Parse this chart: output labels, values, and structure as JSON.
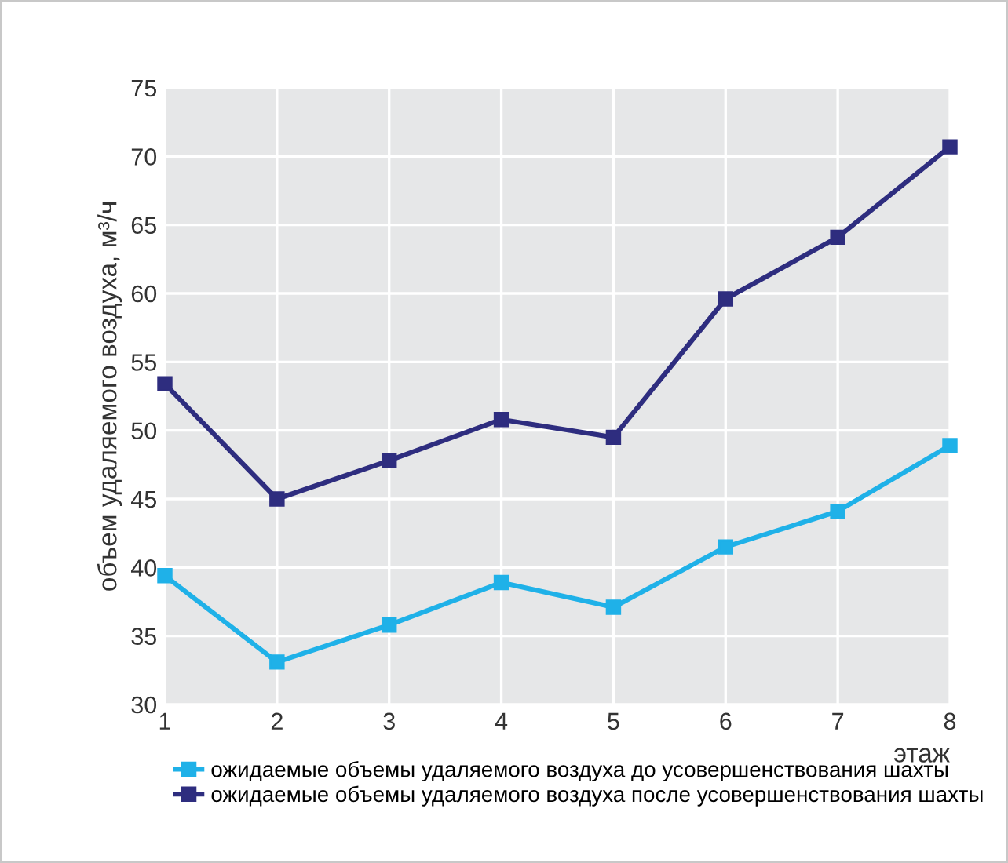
{
  "chart_data": {
    "type": "line",
    "xlabel": "этаж",
    "ylabel": "объем удаляемого воздуха, м³/ч",
    "x": [
      1,
      2,
      3,
      4,
      5,
      6,
      7,
      8
    ],
    "series": [
      {
        "name": "ожидаемые объемы удаляемого воздуха до усовершенствования шахты",
        "color": "#1fb1e8",
        "values": [
          39.4,
          33.1,
          35.8,
          38.9,
          37.1,
          41.5,
          44.1,
          48.9
        ]
      },
      {
        "name": "ожидаемые объемы удаляемого воздуха после усовершенствования шахты",
        "color": "#2e2d7f",
        "values": [
          53.4,
          45.0,
          47.8,
          50.8,
          49.5,
          59.6,
          64.1,
          70.7
        ]
      }
    ],
    "xlim": [
      1,
      8
    ],
    "xticks": [
      1,
      2,
      3,
      4,
      5,
      6,
      7,
      8
    ],
    "ylim": [
      30,
      75
    ],
    "yticks": [
      30,
      35,
      40,
      45,
      50,
      55,
      60,
      65,
      70,
      75
    ],
    "grid": true,
    "legend": "bottom",
    "marker": "square",
    "line_style": "solid"
  }
}
